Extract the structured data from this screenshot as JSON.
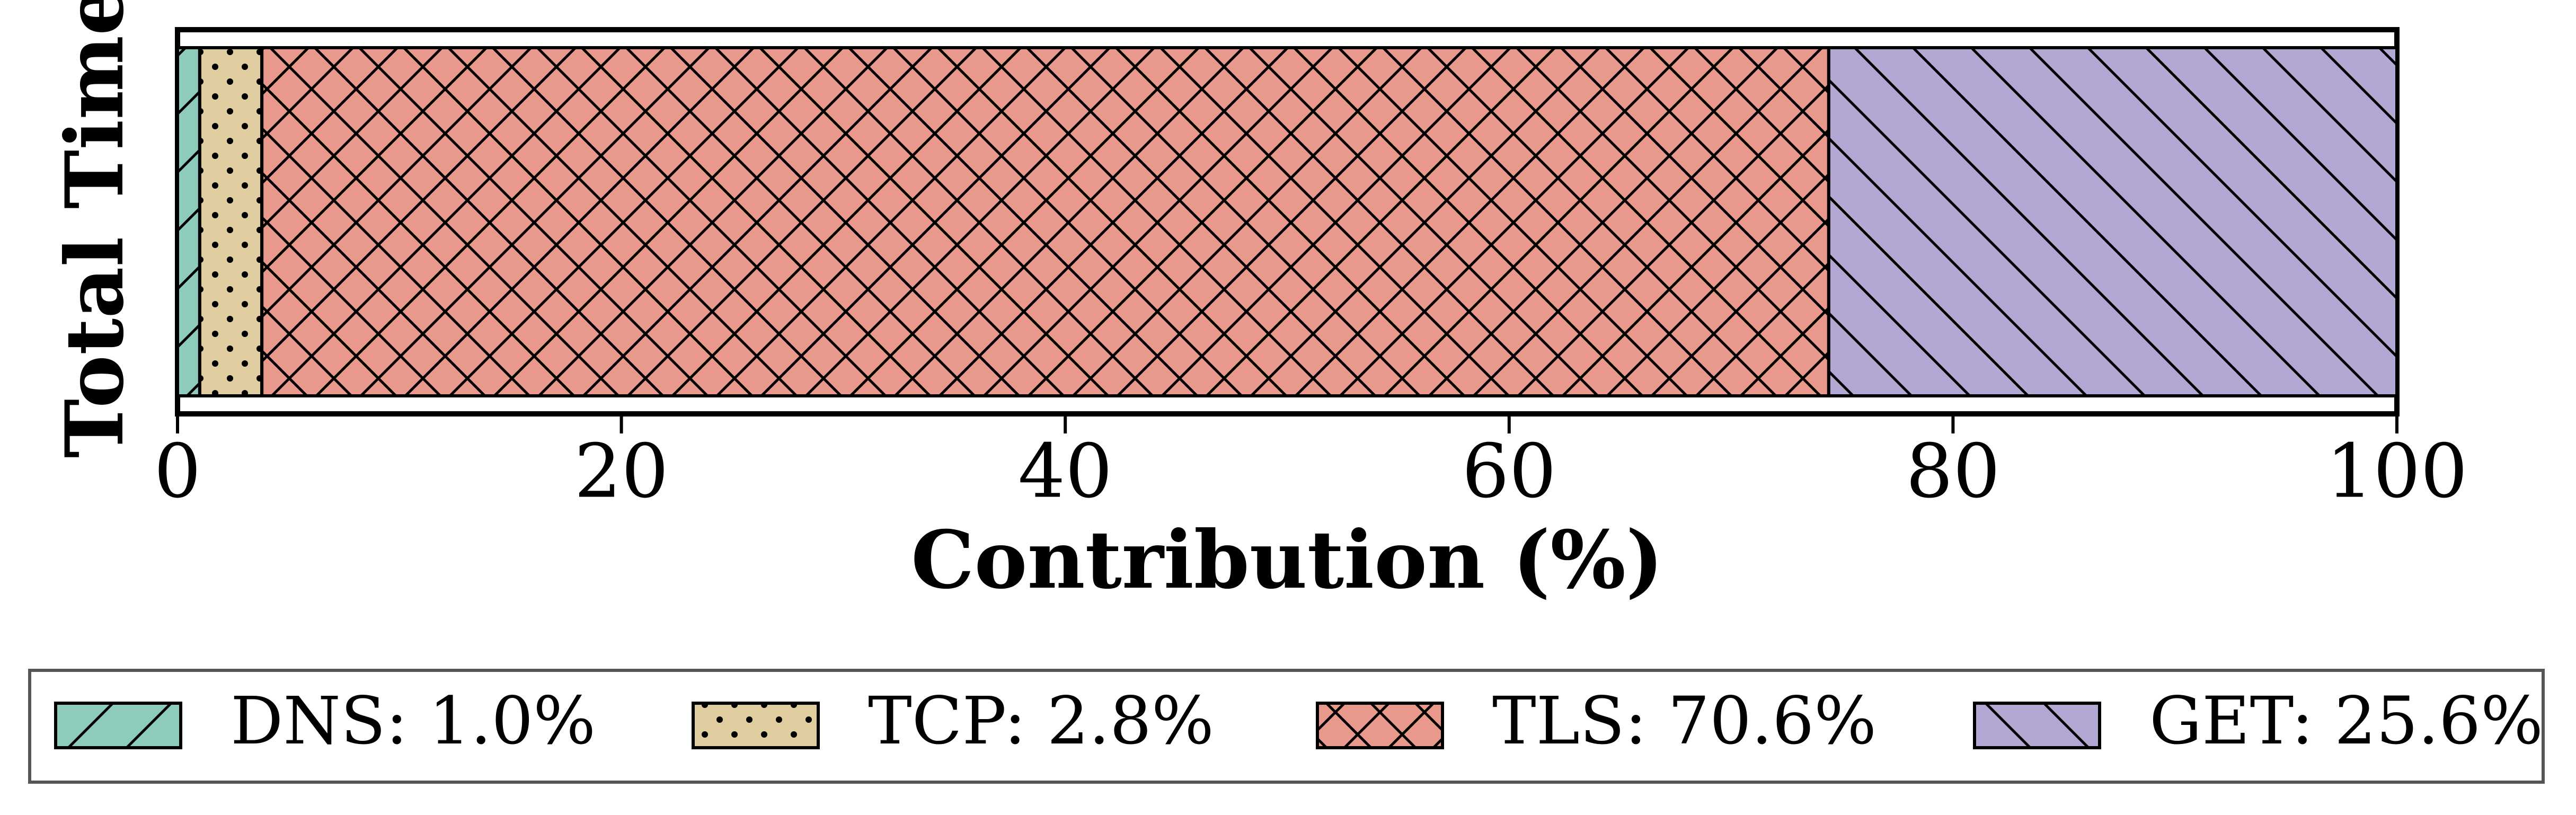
{
  "chart_data": {
    "type": "stacked-barh",
    "xlabel": "Contribution (%)",
    "ylabel": "Total Time",
    "series": [
      {
        "name": "DNS: 1.0%",
        "color": "#8ecbbd",
        "hatch": "/",
        "values": [
          1.0
        ]
      },
      {
        "name": "TCP: 2.8%",
        "color": "#dfcc9f",
        "hatch": ".",
        "values": [
          2.8
        ]
      },
      {
        "name": "TLS: 70.6%",
        "color": "#e8998b",
        "hatch": "x",
        "values": [
          70.6
        ]
      },
      {
        "name": "GET: 25.6%",
        "color": "#b3a8d3",
        "hatch": "\\",
        "values": [
          25.6
        ]
      }
    ],
    "xlim": [
      0,
      100
    ],
    "xticks": [
      0,
      20,
      40,
      60,
      80,
      100
    ],
    "legend": "bottom"
  }
}
